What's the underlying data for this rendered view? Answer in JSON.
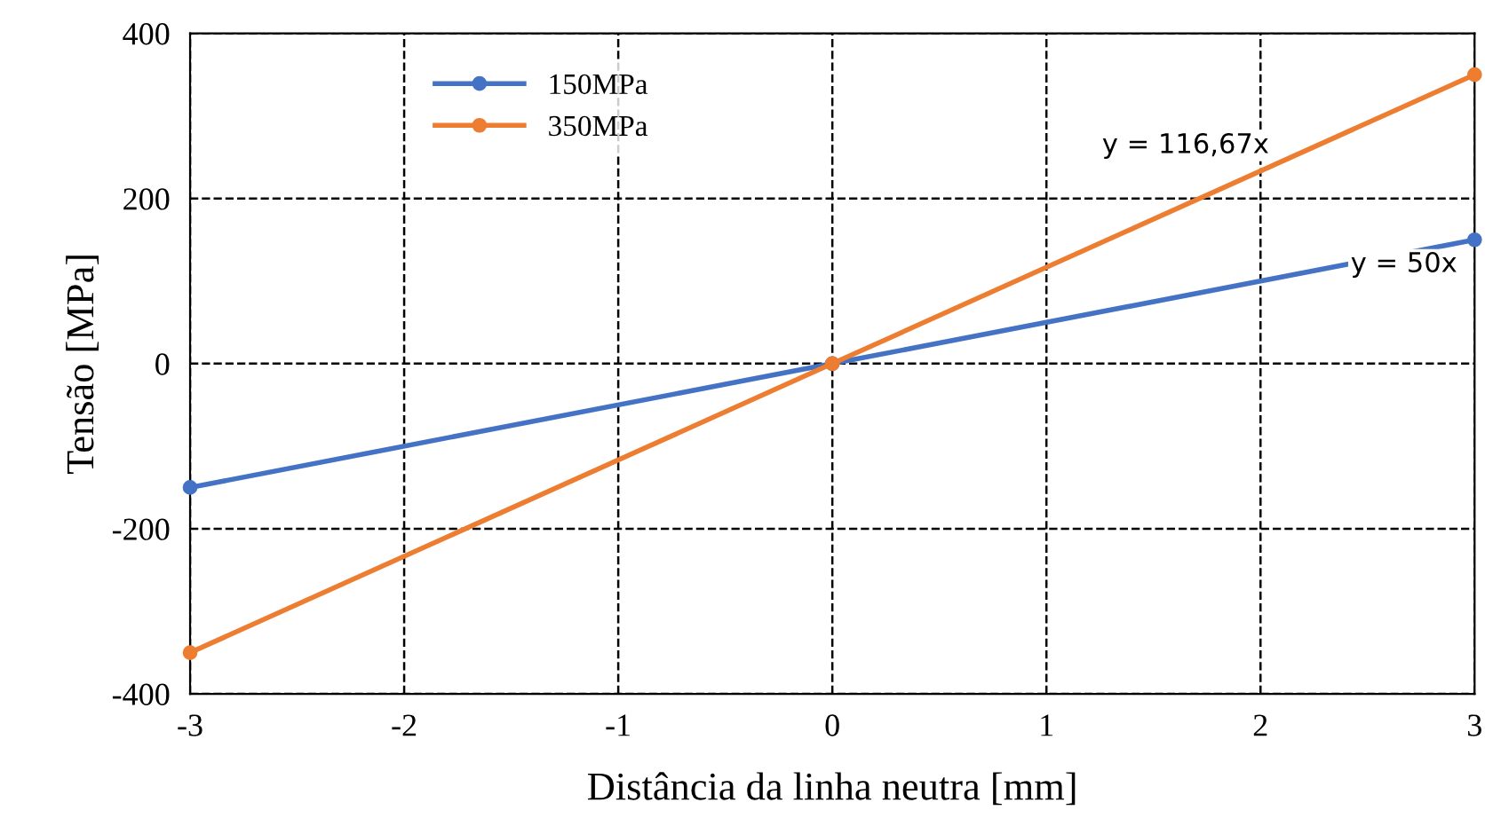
{
  "chart_data": {
    "type": "line",
    "xlabel": "Distância da linha neutra [mm]",
    "ylabel": "Tensão [MPa]",
    "x": [
      -3,
      0,
      3
    ],
    "series": [
      {
        "name": "150MPa",
        "color": "#4472c4",
        "values": [
          -150,
          0,
          150
        ]
      },
      {
        "name": "350MPa",
        "color": "#ed7d31",
        "values": [
          -350,
          0,
          350
        ]
      }
    ],
    "xlim": [
      -3,
      3
    ],
    "xticks": [
      -3,
      -2,
      -1,
      0,
      1,
      2,
      3
    ],
    "ylim": [
      -400,
      400
    ],
    "yticks": [
      -400,
      -200,
      0,
      200,
      400
    ],
    "grid": true,
    "legend": "top left",
    "marker": "circle",
    "line_style": "solid",
    "annotations": [
      "y = 116,67x",
      "y = 50x"
    ]
  }
}
